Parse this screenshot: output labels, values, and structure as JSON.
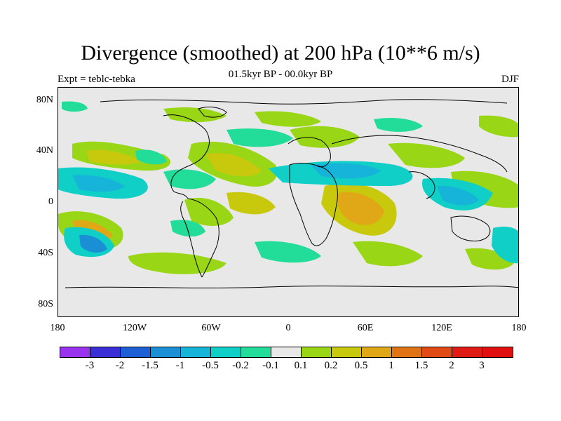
{
  "title": "Divergence (smoothed) at 200 hPa (10**6 m/s)",
  "subtitle": "01.5kyr BP - 00.0kyr BP",
  "left_label": "Expt = teblc-tebka",
  "right_label": "DJF",
  "y_axis_labels": [
    "80N",
    "40N",
    "0",
    "40S",
    "80S"
  ],
  "x_axis_labels": [
    "180",
    "120W",
    "60W",
    "0",
    "60E",
    "120E",
    "180"
  ],
  "colorbar": {
    "labels": [
      "-3",
      "-2",
      "-1.5",
      "-1",
      "-0.5",
      "-0.2",
      "-0.1",
      "0.1",
      "0.2",
      "0.5",
      "1",
      "1.5",
      "2",
      "3"
    ],
    "colors": [
      "#9933ee",
      "#3a2fd6",
      "#1f5fd6",
      "#1b8fd6",
      "#16b4d8",
      "#10cfc6",
      "#22dd99",
      "#e8e8e8",
      "#99d616",
      "#c8c80c",
      "#e0a817",
      "#e07414",
      "#e04a14",
      "#e01a14",
      "#e01010"
    ]
  },
  "colors": {
    "neutral": "#e8e8e8",
    "pos_light": "#99d616",
    "pos_mid": "#c8c80c",
    "pos_strong": "#e0a817",
    "neg_light": "#22dd99",
    "neg_mid": "#10cfc6",
    "neg_strong": "#16b4d8",
    "neg_deep": "#1b8fd6"
  }
}
